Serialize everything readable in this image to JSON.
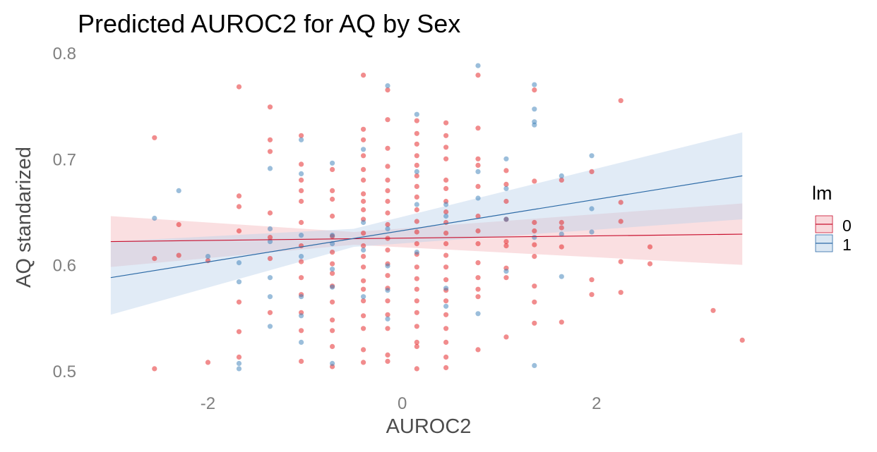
{
  "chart_data": {
    "type": "scatter",
    "title": "Predicted AUROC2 for AQ by Sex",
    "xlabel": "AUROC2",
    "ylabel": "AQ standarized",
    "xlim": [
      -3.05,
      3.6
    ],
    "ylim": [
      0.484,
      0.81
    ],
    "xticks": [
      -2,
      0,
      2
    ],
    "xtick_labels": [
      "-2",
      "0",
      "2"
    ],
    "yticks": [
      0.5,
      0.6,
      0.7,
      0.8
    ],
    "ytick_labels": [
      "0.5",
      "0.6",
      "0.7",
      "0.8"
    ],
    "grid": false,
    "legend": {
      "title": "lm",
      "position": "right",
      "entries": [
        {
          "label": "0",
          "line_color": "#c8102e",
          "fill_color": "#f4b8bd"
        },
        {
          "label": "1",
          "line_color": "#2c6aa6",
          "fill_color": "#bcd3ea"
        }
      ]
    },
    "series": [
      {
        "name": "0",
        "color": "#e41a1c",
        "fit": {
          "x": [
            -3.0,
            3.5
          ],
          "y": [
            0.622,
            0.629
          ]
        },
        "band": {
          "x": [
            -3.0,
            -0.5,
            3.5
          ],
          "lower": [
            0.598,
            0.619,
            0.6
          ],
          "upper": [
            0.646,
            0.631,
            0.658
          ]
        },
        "points": [
          [
            -2.55,
            0.72
          ],
          [
            -2.55,
            0.606
          ],
          [
            -2.55,
            0.502
          ],
          [
            -2.3,
            0.638
          ],
          [
            -2.3,
            0.609
          ],
          [
            -2.0,
            0.604
          ],
          [
            -2.0,
            0.508
          ],
          [
            -1.68,
            0.768
          ],
          [
            -1.68,
            0.665
          ],
          [
            -1.68,
            0.655
          ],
          [
            -1.68,
            0.632
          ],
          [
            -1.68,
            0.565
          ],
          [
            -1.68,
            0.537
          ],
          [
            -1.68,
            0.513
          ],
          [
            -1.36,
            0.749
          ],
          [
            -1.36,
            0.718
          ],
          [
            -1.36,
            0.707
          ],
          [
            -1.36,
            0.649
          ],
          [
            -1.36,
            0.626
          ],
          [
            -1.36,
            0.606
          ],
          [
            -1.36,
            0.555
          ],
          [
            -1.04,
            0.722
          ],
          [
            -1.04,
            0.695
          ],
          [
            -1.04,
            0.68
          ],
          [
            -1.04,
            0.67
          ],
          [
            -1.04,
            0.66
          ],
          [
            -1.04,
            0.64
          ],
          [
            -1.04,
            0.618
          ],
          [
            -1.04,
            0.603
          ],
          [
            -1.04,
            0.588
          ],
          [
            -1.04,
            0.572
          ],
          [
            -1.04,
            0.555
          ],
          [
            -1.04,
            0.538
          ],
          [
            -1.04,
            0.509
          ],
          [
            -0.72,
            0.69
          ],
          [
            -0.72,
            0.67
          ],
          [
            -0.72,
            0.662
          ],
          [
            -0.72,
            0.646
          ],
          [
            -0.72,
            0.627
          ],
          [
            -0.72,
            0.612
          ],
          [
            -0.72,
            0.601
          ],
          [
            -0.72,
            0.592
          ],
          [
            -0.72,
            0.58
          ],
          [
            -0.72,
            0.565
          ],
          [
            -0.72,
            0.548
          ],
          [
            -0.72,
            0.538
          ],
          [
            -0.72,
            0.523
          ],
          [
            -0.72,
            0.504
          ],
          [
            -0.4,
            0.779
          ],
          [
            -0.4,
            0.728
          ],
          [
            -0.4,
            0.718
          ],
          [
            -0.4,
            0.703
          ],
          [
            -0.4,
            0.69
          ],
          [
            -0.4,
            0.68
          ],
          [
            -0.4,
            0.667
          ],
          [
            -0.4,
            0.66
          ],
          [
            -0.4,
            0.652
          ],
          [
            -0.4,
            0.643
          ],
          [
            -0.4,
            0.63
          ],
          [
            -0.4,
            0.618
          ],
          [
            -0.4,
            0.608
          ],
          [
            -0.4,
            0.598
          ],
          [
            -0.4,
            0.585
          ],
          [
            -0.4,
            0.577
          ],
          [
            -0.4,
            0.566
          ],
          [
            -0.4,
            0.552
          ],
          [
            -0.4,
            0.54
          ],
          [
            -0.4,
            0.52
          ],
          [
            -0.4,
            0.508
          ],
          [
            -0.15,
            0.765
          ],
          [
            -0.15,
            0.737
          ],
          [
            -0.15,
            0.71
          ],
          [
            -0.15,
            0.693
          ],
          [
            -0.15,
            0.68
          ],
          [
            -0.15,
            0.67
          ],
          [
            -0.15,
            0.66
          ],
          [
            -0.15,
            0.649
          ],
          [
            -0.15,
            0.638
          ],
          [
            -0.15,
            0.625
          ],
          [
            -0.15,
            0.614
          ],
          [
            -0.15,
            0.601
          ],
          [
            -0.15,
            0.59
          ],
          [
            -0.15,
            0.578
          ],
          [
            -0.15,
            0.566
          ],
          [
            -0.15,
            0.553
          ],
          [
            -0.15,
            0.54
          ],
          [
            -0.15,
            0.515
          ],
          [
            -0.15,
            0.509
          ],
          [
            0.15,
            0.736
          ],
          [
            0.15,
            0.724
          ],
          [
            0.15,
            0.714
          ],
          [
            0.15,
            0.703
          ],
          [
            0.15,
            0.694
          ],
          [
            0.15,
            0.684
          ],
          [
            0.15,
            0.674
          ],
          [
            0.15,
            0.664
          ],
          [
            0.15,
            0.652
          ],
          [
            0.15,
            0.641
          ],
          [
            0.15,
            0.631
          ],
          [
            0.15,
            0.62
          ],
          [
            0.15,
            0.61
          ],
          [
            0.15,
            0.598
          ],
          [
            0.15,
            0.587
          ],
          [
            0.15,
            0.577
          ],
          [
            0.15,
            0.566
          ],
          [
            0.15,
            0.555
          ],
          [
            0.15,
            0.542
          ],
          [
            0.15,
            0.527
          ],
          [
            0.15,
            0.523
          ],
          [
            0.15,
            0.502
          ],
          [
            0.45,
            0.734
          ],
          [
            0.45,
            0.722
          ],
          [
            0.45,
            0.711
          ],
          [
            0.45,
            0.7
          ],
          [
            0.45,
            0.68
          ],
          [
            0.45,
            0.672
          ],
          [
            0.45,
            0.66
          ],
          [
            0.45,
            0.65
          ],
          [
            0.45,
            0.64
          ],
          [
            0.45,
            0.63
          ],
          [
            0.45,
            0.62
          ],
          [
            0.45,
            0.609
          ],
          [
            0.45,
            0.598
          ],
          [
            0.45,
            0.586
          ],
          [
            0.45,
            0.576
          ],
          [
            0.45,
            0.566
          ],
          [
            0.45,
            0.553
          ],
          [
            0.45,
            0.54
          ],
          [
            0.45,
            0.527
          ],
          [
            0.45,
            0.513
          ],
          [
            0.45,
            0.503
          ],
          [
            0.78,
            0.779
          ],
          [
            0.78,
            0.729
          ],
          [
            0.78,
            0.7
          ],
          [
            0.78,
            0.694
          ],
          [
            0.78,
            0.674
          ],
          [
            0.78,
            0.646
          ],
          [
            0.78,
            0.632
          ],
          [
            0.78,
            0.62
          ],
          [
            0.78,
            0.602
          ],
          [
            0.78,
            0.588
          ],
          [
            0.78,
            0.577
          ],
          [
            0.78,
            0.57
          ],
          [
            0.78,
            0.52
          ],
          [
            1.07,
            0.689
          ],
          [
            1.07,
            0.676
          ],
          [
            1.07,
            0.66
          ],
          [
            1.07,
            0.643
          ],
          [
            1.07,
            0.622
          ],
          [
            1.07,
            0.618
          ],
          [
            1.07,
            0.597
          ],
          [
            1.07,
            0.588
          ],
          [
            1.07,
            0.532
          ],
          [
            1.36,
            0.765
          ],
          [
            1.36,
            0.679
          ],
          [
            1.36,
            0.64
          ],
          [
            1.36,
            0.632
          ],
          [
            1.36,
            0.619
          ],
          [
            1.36,
            0.608
          ],
          [
            1.36,
            0.58
          ],
          [
            1.36,
            0.565
          ],
          [
            1.36,
            0.545
          ],
          [
            1.64,
            0.68
          ],
          [
            1.64,
            0.64
          ],
          [
            1.64,
            0.635
          ],
          [
            1.64,
            0.617
          ],
          [
            1.64,
            0.546
          ],
          [
            1.95,
            0.688
          ],
          [
            1.95,
            0.586
          ],
          [
            1.95,
            0.572
          ],
          [
            2.25,
            0.755
          ],
          [
            2.25,
            0.659
          ],
          [
            2.25,
            0.641
          ],
          [
            2.25,
            0.603
          ],
          [
            2.25,
            0.574
          ],
          [
            2.55,
            0.617
          ],
          [
            2.55,
            0.601
          ],
          [
            3.2,
            0.557
          ],
          [
            3.5,
            0.529
          ]
        ]
      },
      {
        "name": "1",
        "color": "#377eb8",
        "fit": {
          "x": [
            -3.0,
            3.5
          ],
          "y": [
            0.588,
            0.684
          ]
        },
        "band": {
          "x": [
            -3.0,
            -0.5,
            3.5
          ],
          "lower": [
            0.553,
            0.617,
            0.643
          ],
          "upper": [
            0.622,
            0.634,
            0.725
          ]
        },
        "points": [
          [
            -2.55,
            0.644
          ],
          [
            -2.3,
            0.67
          ],
          [
            -2.0,
            0.608
          ],
          [
            -1.68,
            0.602
          ],
          [
            -1.68,
            0.584
          ],
          [
            -1.68,
            0.507
          ],
          [
            -1.68,
            0.502
          ],
          [
            -1.36,
            0.691
          ],
          [
            -1.36,
            0.634
          ],
          [
            -1.36,
            0.622
          ],
          [
            -1.36,
            0.588
          ],
          [
            -1.36,
            0.57
          ],
          [
            -1.36,
            0.542
          ],
          [
            -1.04,
            0.718
          ],
          [
            -1.04,
            0.686
          ],
          [
            -1.04,
            0.628
          ],
          [
            -1.04,
            0.608
          ],
          [
            -1.04,
            0.57
          ],
          [
            -1.04,
            0.552
          ],
          [
            -1.04,
            0.527
          ],
          [
            -0.72,
            0.696
          ],
          [
            -0.72,
            0.628
          ],
          [
            -0.72,
            0.62
          ],
          [
            -0.72,
            0.596
          ],
          [
            -0.72,
            0.579
          ],
          [
            -0.72,
            0.507
          ],
          [
            -0.4,
            0.709
          ],
          [
            -0.4,
            0.64
          ],
          [
            -0.4,
            0.614
          ],
          [
            -0.4,
            0.57
          ],
          [
            -0.15,
            0.769
          ],
          [
            -0.15,
            0.634
          ],
          [
            -0.15,
            0.599
          ],
          [
            -0.15,
            0.576
          ],
          [
            -0.15,
            0.549
          ],
          [
            0.15,
            0.742
          ],
          [
            0.15,
            0.688
          ],
          [
            0.15,
            0.657
          ],
          [
            0.15,
            0.612
          ],
          [
            0.45,
            0.657
          ],
          [
            0.45,
            0.646
          ],
          [
            0.45,
            0.578
          ],
          [
            0.45,
            0.561
          ],
          [
            0.78,
            0.788
          ],
          [
            0.78,
            0.688
          ],
          [
            0.78,
            0.663
          ],
          [
            0.78,
            0.554
          ],
          [
            1.07,
            0.7
          ],
          [
            1.07,
            0.672
          ],
          [
            1.07,
            0.643
          ],
          [
            1.07,
            0.594
          ],
          [
            1.36,
            0.77
          ],
          [
            1.36,
            0.747
          ],
          [
            1.36,
            0.735
          ],
          [
            1.36,
            0.732
          ],
          [
            1.36,
            0.626
          ],
          [
            1.36,
            0.505
          ],
          [
            1.64,
            0.684
          ],
          [
            1.64,
            0.629
          ],
          [
            1.64,
            0.589
          ],
          [
            1.95,
            0.703
          ],
          [
            1.95,
            0.653
          ],
          [
            1.95,
            0.631
          ]
        ]
      }
    ]
  }
}
